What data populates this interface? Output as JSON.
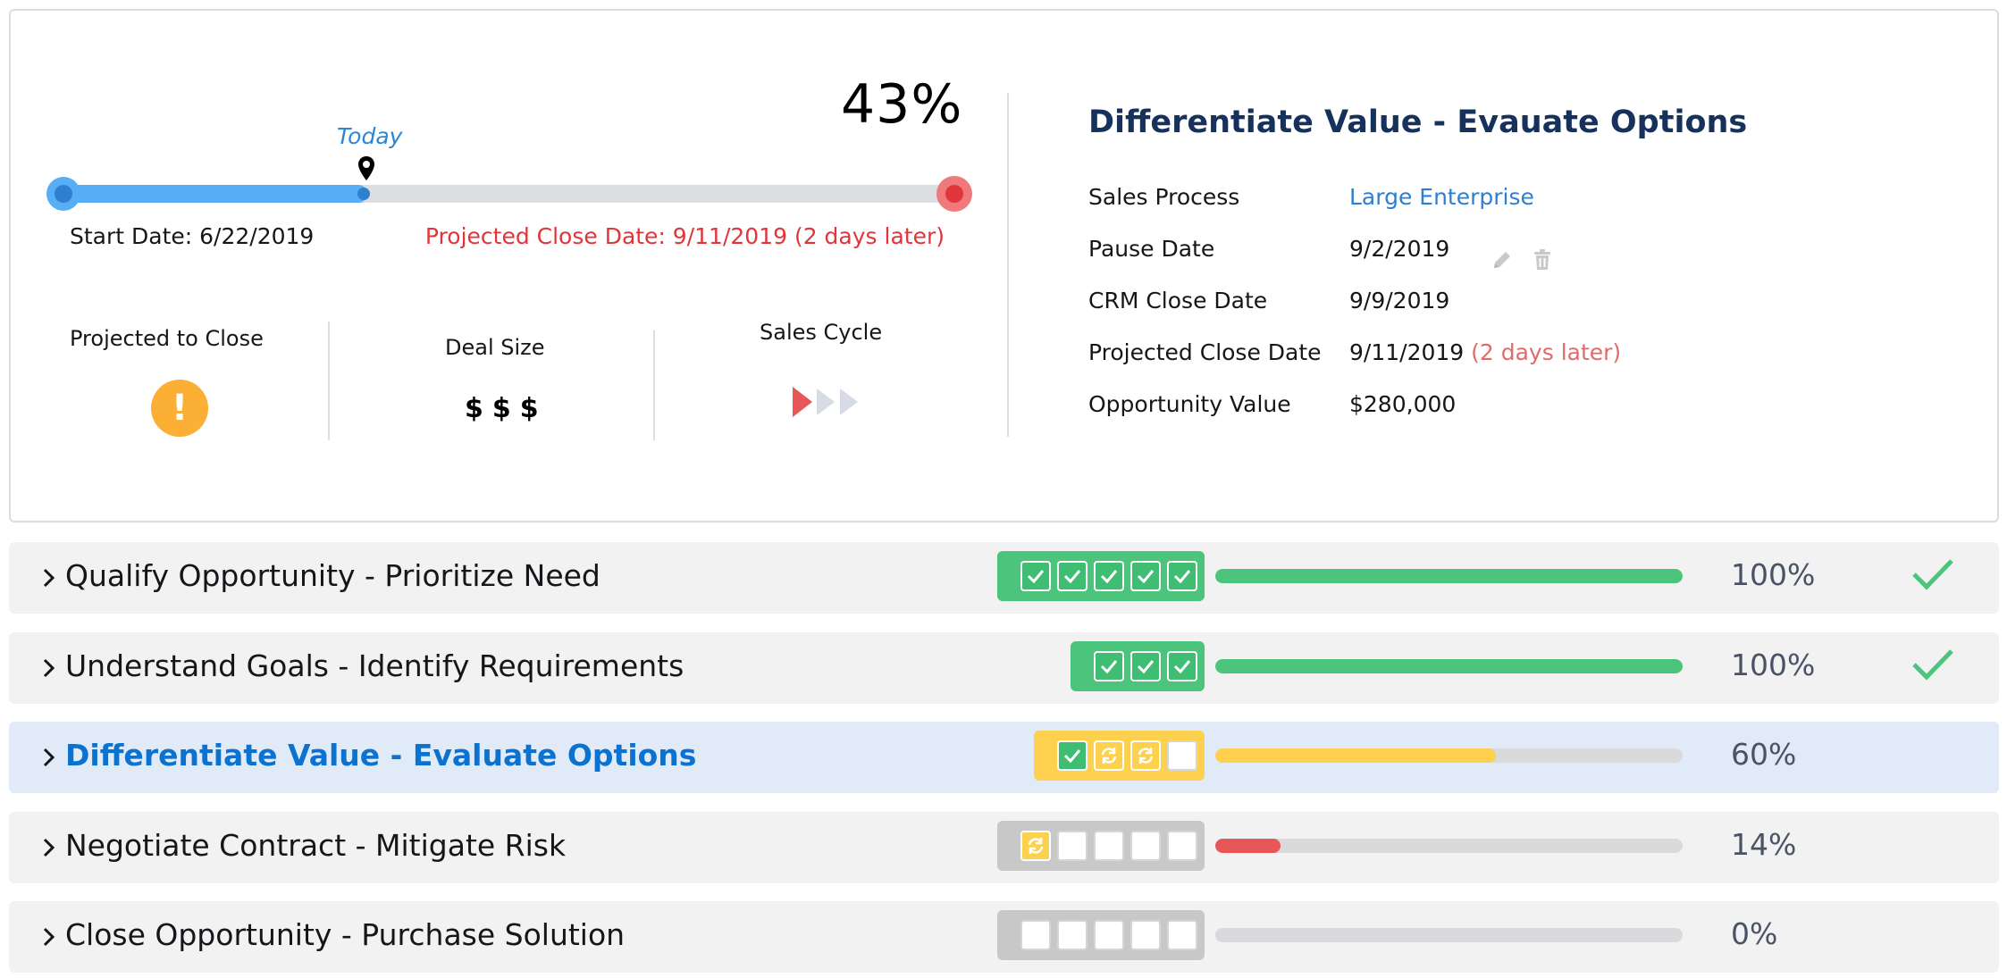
{
  "summary": {
    "progress_percent": "43%",
    "progress_value": 43,
    "today_label": "Today",
    "today_position": 34,
    "start_date": "Start Date: 6/22/2019",
    "projected_close": "Projected Close Date: 9/11/2019 (2 days later)",
    "metrics": {
      "projected_to_close": "Projected to Close",
      "projected_icon": "!",
      "deal_size": "Deal Size",
      "deal_size_value": "$$$",
      "sales_cycle": "Sales Cycle"
    }
  },
  "details": {
    "title": "Differentiate Value - Evauate Options",
    "rows": [
      {
        "label": "Sales Process",
        "value": "Large Enterprise"
      },
      {
        "label": "Pause Date",
        "value": "9/2/2019"
      },
      {
        "label": "CRM Close Date",
        "value": "9/9/2019"
      },
      {
        "label": "Projected Close Date",
        "value": "9/11/2019",
        "note": "(2 days later)"
      },
      {
        "label": "Opportunity Value",
        "value": "$280,000"
      }
    ]
  },
  "stages": [
    {
      "name": "Qualify Opportunity - Prioritize Need",
      "tasks": [
        "done",
        "done",
        "done",
        "done",
        "done"
      ],
      "percent": "100%",
      "progress": 100,
      "bar_color": "#4cc47b",
      "tray_color": "#4cc47b",
      "complete": true,
      "active": false
    },
    {
      "name": "Understand Goals - Identify Requirements",
      "tasks": [
        "done",
        "done",
        "done"
      ],
      "percent": "100%",
      "progress": 100,
      "bar_color": "#4cc47b",
      "tray_color": "#4cc47b",
      "complete": true,
      "active": false
    },
    {
      "name": "Differentiate Value - Evaluate Options",
      "tasks": [
        "done",
        "prog",
        "prog",
        "todo"
      ],
      "percent": "60%",
      "progress": 60,
      "bar_color": "#fdd14d",
      "tray_color": "#fdd14d",
      "complete": false,
      "active": true
    },
    {
      "name": "Negotiate Contract - Mitigate Risk",
      "tasks": [
        "prog",
        "todo",
        "todo",
        "todo",
        "todo"
      ],
      "percent": "14%",
      "progress": 14,
      "bar_color": "#e75758",
      "tray_color": "#c8c8c8",
      "complete": false,
      "active": false
    },
    {
      "name": "Close Opportunity - Purchase Solution",
      "tasks": [
        "todo",
        "todo",
        "todo",
        "todo",
        "todo"
      ],
      "percent": "0%",
      "progress": 0,
      "bar_color": "#dadadd",
      "tray_color": "#c8c8c8",
      "complete": false,
      "active": false
    }
  ],
  "colors": {
    "accent": "#2e7fd0",
    "warning": "#fbb035",
    "danger": "#e0353a",
    "success": "#4cc47b",
    "title": "#16325c"
  }
}
